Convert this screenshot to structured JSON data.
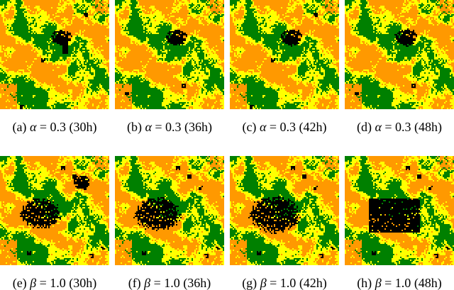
{
  "palette": {
    "background_orange": "#ff9900",
    "yellow": "#ffff00",
    "green": "#008000",
    "burnt": "#000000"
  },
  "rows": [
    {
      "parameter_symbol": "α",
      "parameter_value": "0.3",
      "panels": [
        {
          "tag": "(a)",
          "symbol": "α",
          "eq": "= 0.3",
          "time": "(30h)",
          "burn_extent": 0.25,
          "burn_shape": "blob-tail"
        },
        {
          "tag": "(b)",
          "symbol": "α",
          "eq": "= 0.3",
          "time": "(36h)",
          "burn_extent": 0.28,
          "burn_shape": "blob"
        },
        {
          "tag": "(c)",
          "symbol": "α",
          "eq": "= 0.3",
          "time": "(42h)",
          "burn_extent": 0.3,
          "burn_shape": "blob"
        },
        {
          "tag": "(d)",
          "symbol": "α",
          "eq": "= 0.3",
          "time": "(48h)",
          "burn_extent": 0.32,
          "burn_shape": "blob"
        }
      ]
    },
    {
      "parameter_symbol": "β",
      "parameter_value": "1.0",
      "panels": [
        {
          "tag": "(e)",
          "symbol": "β",
          "eq": "= 1.0",
          "time": "(30h)",
          "burn_extent": 0.35,
          "burn_shape": "patch"
        },
        {
          "tag": "(f)",
          "symbol": "β",
          "eq": "= 1.0",
          "time": "(36h)",
          "burn_extent": 0.45,
          "burn_shape": "patch"
        },
        {
          "tag": "(g)",
          "symbol": "β",
          "eq": "= 1.0",
          "time": "(42h)",
          "burn_extent": 0.55,
          "burn_shape": "patch"
        },
        {
          "tag": "(h)",
          "symbol": "β",
          "eq": "= 1.0",
          "time": "(48h)",
          "burn_extent": 0.65,
          "burn_shape": "rect"
        }
      ]
    }
  ]
}
